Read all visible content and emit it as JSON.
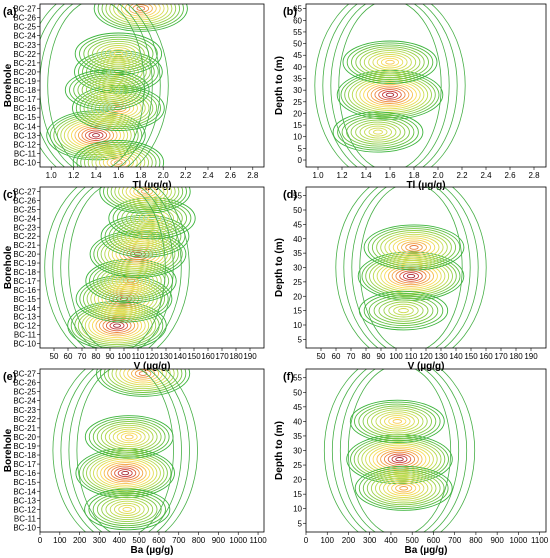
{
  "chart_data": [
    {
      "type": "heatmap",
      "panel_label": "(a)",
      "xlabel": "Tl (µg/g)",
      "ylabel": "Borehole",
      "x_ticks": [
        "1.0",
        "1.2",
        "1.4",
        "1.6",
        "1.8",
        "2.0",
        "2.2",
        "2.4",
        "2.6",
        "2.8"
      ],
      "xlim": [
        0.9,
        2.9
      ],
      "y_ticks": [
        "BC-10",
        "BC-11",
        "BC-12",
        "BC-13",
        "BC-14",
        "BC-15",
        "BC-16",
        "BC-17",
        "BC-18",
        "BC-19",
        "BC-20",
        "BC-21",
        "BC-22",
        "BC-23",
        "BC-24",
        "BC-25",
        "BC-26",
        "BC-27"
      ],
      "peaks": [
        {
          "x": 1.4,
          "y": "BC-13",
          "amp": 1.0
        },
        {
          "x": 1.6,
          "y": "BC-16",
          "amp": 0.75
        },
        {
          "x": 1.6,
          "y": "BC-20",
          "amp": 0.6
        },
        {
          "x": 1.6,
          "y": "BC-22",
          "amp": 0.55
        },
        {
          "x": 1.8,
          "y": "BC-27",
          "amp": 0.8
        },
        {
          "x": 1.6,
          "y": "BC-10",
          "amp": 0.7
        },
        {
          "x": 1.5,
          "y": "BC-18",
          "amp": 0.45
        }
      ]
    },
    {
      "type": "heatmap",
      "panel_label": "(b)",
      "xlabel": "Tl (µg/g)",
      "ylabel": "Depth to (m)",
      "x_ticks": [
        "1.0",
        "1.2",
        "1.4",
        "1.6",
        "1.8",
        "2.0",
        "2.2",
        "2.4",
        "2.6",
        "2.8"
      ],
      "xlim": [
        0.9,
        2.9
      ],
      "y_ticks": [
        "0",
        "5",
        "10",
        "15",
        "20",
        "25",
        "30",
        "35",
        "40",
        "45",
        "50",
        "55",
        "60",
        "65"
      ],
      "ylim": [
        -3,
        67
      ],
      "peaks": [
        {
          "x": 1.6,
          "y": 28,
          "amp": 1.0
        },
        {
          "x": 1.6,
          "y": 42,
          "amp": 0.6
        },
        {
          "x": 1.5,
          "y": 12,
          "amp": 0.45
        }
      ]
    },
    {
      "type": "heatmap",
      "panel_label": "(c)",
      "xlabel": "V (µg/g)",
      "ylabel": "Borehole",
      "x_ticks": [
        "50",
        "60",
        "70",
        "80",
        "90",
        "100",
        "110",
        "120",
        "130",
        "140",
        "150",
        "160",
        "170",
        "180",
        "190"
      ],
      "xlim": [
        40,
        200
      ],
      "y_ticks": [
        "BC-10",
        "BC-11",
        "BC-12",
        "BC-13",
        "BC-14",
        "BC-15",
        "BC-16",
        "BC-17",
        "BC-18",
        "BC-19",
        "BC-20",
        "BC-21",
        "BC-22",
        "BC-23",
        "BC-24",
        "BC-25",
        "BC-26",
        "BC-27"
      ],
      "peaks": [
        {
          "x": 95,
          "y": "BC-12",
          "amp": 1.0
        },
        {
          "x": 100,
          "y": "BC-15",
          "amp": 0.9
        },
        {
          "x": 105,
          "y": "BC-17",
          "amp": 0.7
        },
        {
          "x": 110,
          "y": "BC-20",
          "amp": 0.9
        },
        {
          "x": 115,
          "y": "BC-22",
          "amp": 0.6
        },
        {
          "x": 120,
          "y": "BC-24",
          "amp": 0.55
        },
        {
          "x": 115,
          "y": "BC-27",
          "amp": 0.7
        }
      ]
    },
    {
      "type": "heatmap",
      "panel_label": "(d)",
      "xlabel": "V (µg/g)",
      "ylabel": "Depth to (m)",
      "x_ticks": [
        "50",
        "60",
        "70",
        "80",
        "90",
        "100",
        "110",
        "120",
        "130",
        "140",
        "150",
        "160",
        "170",
        "180",
        "190"
      ],
      "xlim": [
        40,
        200
      ],
      "y_ticks": [
        "5",
        "10",
        "15",
        "20",
        "25",
        "30",
        "35",
        "40",
        "45",
        "50",
        "55"
      ],
      "ylim": [
        2,
        58
      ],
      "peaks": [
        {
          "x": 110,
          "y": 27,
          "amp": 1.0
        },
        {
          "x": 112,
          "y": 37,
          "amp": 0.8
        },
        {
          "x": 105,
          "y": 15,
          "amp": 0.4
        }
      ]
    },
    {
      "type": "heatmap",
      "panel_label": "(e)",
      "xlabel": "Ba (µg/g)",
      "ylabel": "Borehole",
      "x_ticks": [
        "0",
        "100",
        "200",
        "300",
        "400",
        "500",
        "600",
        "700",
        "800",
        "900",
        "1000",
        "1100"
      ],
      "xlim": [
        0,
        1130
      ],
      "y_ticks": [
        "BC-10",
        "BC-11",
        "BC-12",
        "BC-13",
        "BC-14",
        "BC-15",
        "BC-16",
        "BC-17",
        "BC-18",
        "BC-19",
        "BC-20",
        "BC-21",
        "BC-22",
        "BC-23",
        "BC-24",
        "BC-25",
        "BC-26",
        "BC-27"
      ],
      "peaks": [
        {
          "x": 430,
          "y": "BC-16",
          "amp": 1.0
        },
        {
          "x": 450,
          "y": "BC-20",
          "amp": 0.6
        },
        {
          "x": 520,
          "y": "BC-27",
          "amp": 0.8
        },
        {
          "x": 440,
          "y": "BC-12",
          "amp": 0.5
        }
      ]
    },
    {
      "type": "heatmap",
      "panel_label": "(f)",
      "xlabel": "Ba (µg/g)",
      "ylabel": "Depth to (m)",
      "x_ticks": [
        "0",
        "100",
        "200",
        "300",
        "400",
        "500",
        "600",
        "700",
        "800",
        "900",
        "1000",
        "1100"
      ],
      "xlim": [
        0,
        1130
      ],
      "y_ticks": [
        "5",
        "10",
        "15",
        "20",
        "25",
        "30",
        "35",
        "40",
        "45",
        "50",
        "55"
      ],
      "ylim": [
        2,
        58
      ],
      "peaks": [
        {
          "x": 440,
          "y": 27,
          "amp": 1.0
        },
        {
          "x": 460,
          "y": 17,
          "amp": 0.7
        },
        {
          "x": 430,
          "y": 40,
          "amp": 0.6
        }
      ]
    }
  ]
}
